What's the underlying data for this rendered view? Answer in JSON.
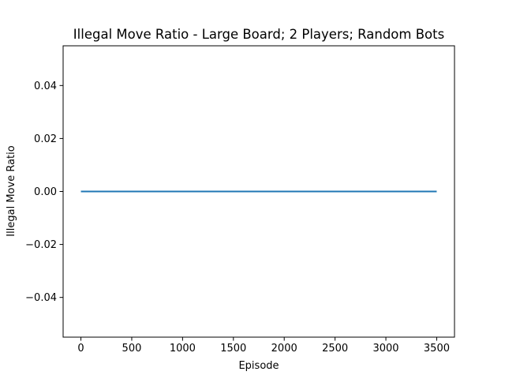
{
  "chart_data": {
    "type": "line",
    "title": "Illegal Move Ratio - Large Board; 2 Players; Random Bots",
    "xlabel": "Episode",
    "ylabel": "Illegal Move Ratio",
    "xlim": [
      -175,
      3675
    ],
    "ylim": [
      -0.055,
      0.055
    ],
    "x_ticks": [
      0,
      500,
      1000,
      1500,
      2000,
      2500,
      3000,
      3500
    ],
    "x_tick_labels": [
      "0",
      "500",
      "1000",
      "1500",
      "2000",
      "2500",
      "3000",
      "3500"
    ],
    "y_ticks": [
      -0.04,
      -0.02,
      0.0,
      0.02,
      0.04
    ],
    "y_tick_labels": [
      "−0.04",
      "−0.02",
      "0.00",
      "0.02",
      "0.04"
    ],
    "grid": false,
    "series": [
      {
        "color": "#1f77b4",
        "x": [
          0,
          3500
        ],
        "y": [
          0.0,
          0.0
        ]
      }
    ]
  }
}
